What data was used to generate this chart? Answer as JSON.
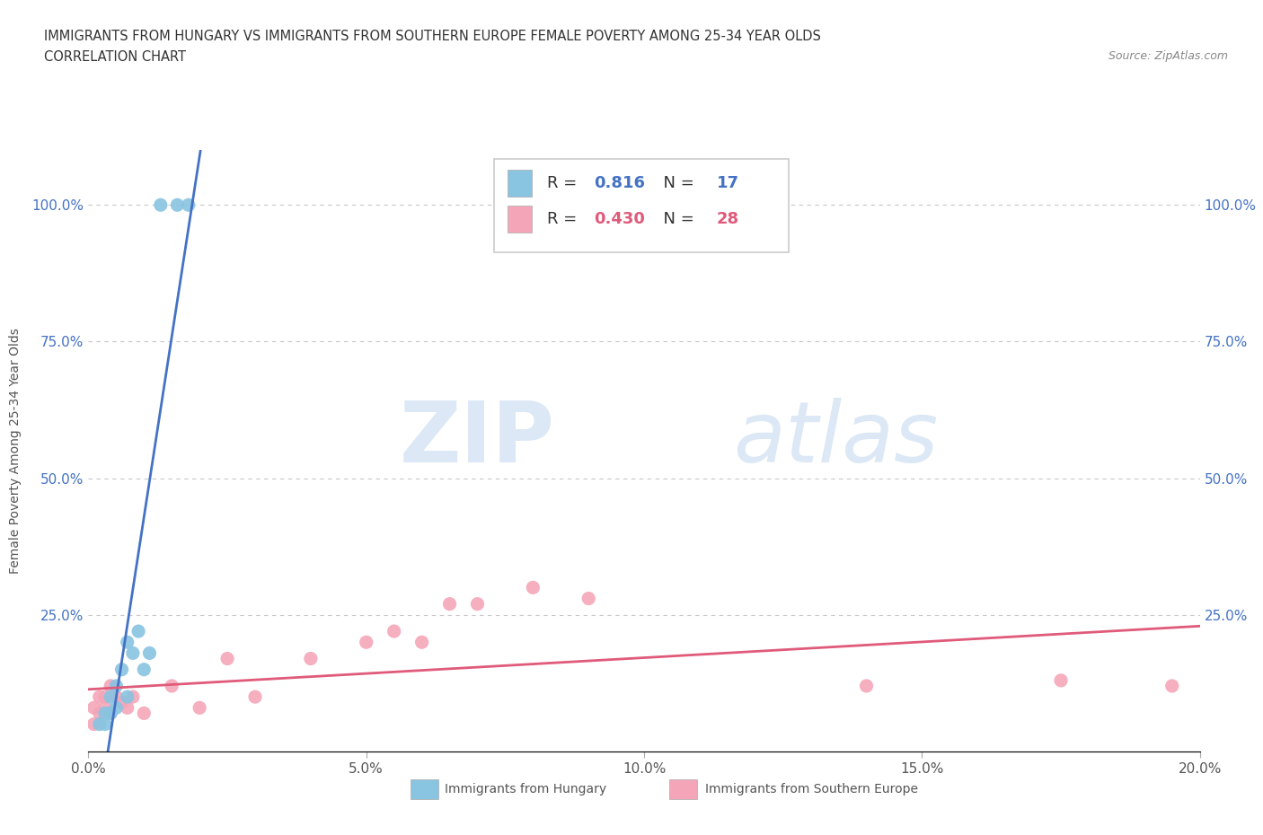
{
  "title_line1": "IMMIGRANTS FROM HUNGARY VS IMMIGRANTS FROM SOUTHERN EUROPE FEMALE POVERTY AMONG 25-34 YEAR OLDS",
  "title_line2": "CORRELATION CHART",
  "source_text": "Source: ZipAtlas.com",
  "ylabel": "Female Poverty Among 25-34 Year Olds",
  "xlim": [
    0.0,
    0.2
  ],
  "ylim": [
    0.0,
    1.1
  ],
  "xtick_labels": [
    "0.0%",
    "5.0%",
    "10.0%",
    "15.0%",
    "20.0%"
  ],
  "xtick_vals": [
    0.0,
    0.05,
    0.1,
    0.15,
    0.2
  ],
  "ytick_labels": [
    "100.0%",
    "75.0%",
    "50.0%",
    "25.0%"
  ],
  "ytick_vals": [
    1.0,
    0.75,
    0.5,
    0.25
  ],
  "r_hungary": 0.816,
  "n_hungary": 17,
  "r_southern": 0.43,
  "n_southern": 28,
  "color_hungary": "#89c4e1",
  "color_southern": "#f4a6b8",
  "line_color_hungary": "#4472c4",
  "line_color_southern": "#e05a7a",
  "watermark_zip": "ZIP",
  "watermark_atlas": "atlas",
  "hungary_x": [
    0.002,
    0.003,
    0.003,
    0.004,
    0.004,
    0.005,
    0.005,
    0.006,
    0.007,
    0.007,
    0.008,
    0.009,
    0.01,
    0.011,
    0.013,
    0.016,
    0.018
  ],
  "hungary_y": [
    0.05,
    0.05,
    0.07,
    0.07,
    0.1,
    0.08,
    0.12,
    0.15,
    0.1,
    0.2,
    0.18,
    0.22,
    0.15,
    0.18,
    1.0,
    1.0,
    1.0
  ],
  "southern_x": [
    0.001,
    0.001,
    0.002,
    0.002,
    0.003,
    0.003,
    0.004,
    0.004,
    0.005,
    0.006,
    0.007,
    0.008,
    0.01,
    0.015,
    0.02,
    0.025,
    0.03,
    0.04,
    0.05,
    0.055,
    0.06,
    0.065,
    0.07,
    0.08,
    0.09,
    0.14,
    0.175,
    0.195
  ],
  "southern_y": [
    0.08,
    0.05,
    0.1,
    0.07,
    0.1,
    0.08,
    0.12,
    0.07,
    0.1,
    0.09,
    0.08,
    0.1,
    0.07,
    0.12,
    0.08,
    0.17,
    0.1,
    0.17,
    0.2,
    0.22,
    0.2,
    0.27,
    0.27,
    0.3,
    0.28,
    0.12,
    0.13,
    0.12
  ],
  "background_color": "#ffffff",
  "grid_color": "#c8c8c8"
}
